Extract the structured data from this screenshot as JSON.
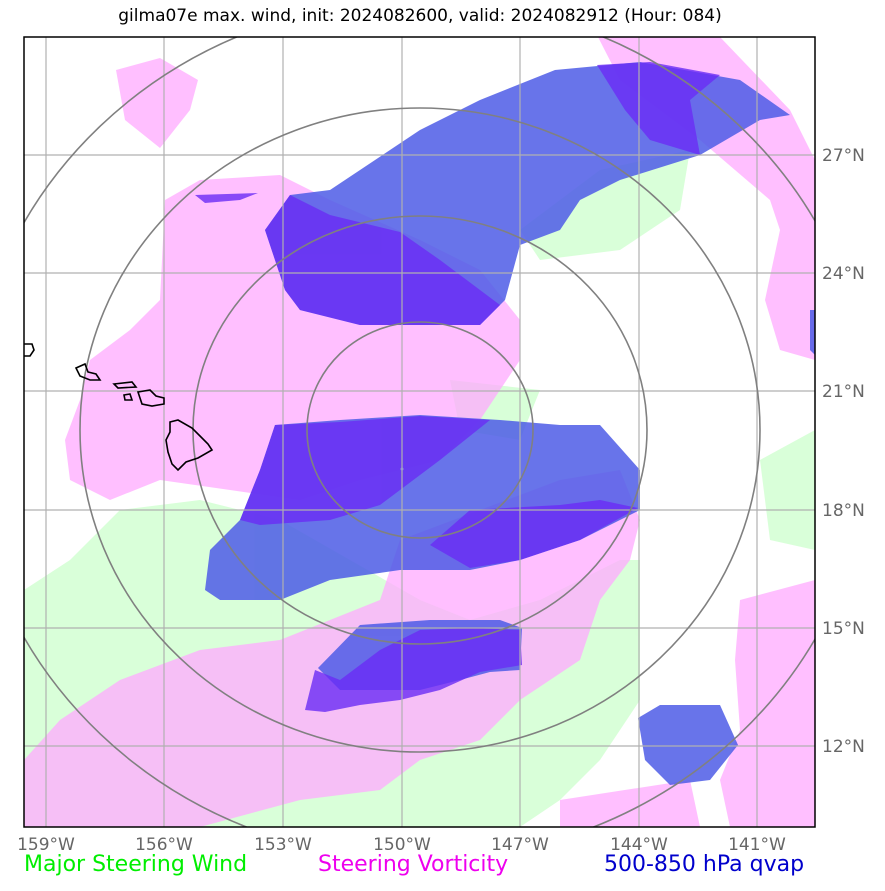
{
  "title": "gilma07e max. wind, init: 2024082600, valid: 2024082912 (Hour: 084)",
  "x_ticks": [
    "159°W",
    "156°W",
    "153°W",
    "150°W",
    "147°W",
    "144°W",
    "141°W"
  ],
  "y_ticks": [
    "27°N",
    "24°N",
    "21°N",
    "18°N",
    "15°N",
    "12°N"
  ],
  "legend": {
    "wind": "Major Steering Wind",
    "vorticity": "Steering Vorticity",
    "qvap": "500-850 hPa qvap"
  },
  "colors": {
    "wind": "#ccffcc",
    "vorticity": "#ffb3ff",
    "qvap_light": "#4d5ce6",
    "qvap_dark": "#6a2cf5",
    "grid": "#b0b0b0",
    "rings": "#808080",
    "coast": "#000000"
  },
  "chart_data": {
    "type": "map",
    "projection": "lat-lon",
    "lon_range": [
      "159.5°W",
      "139.5°W"
    ],
    "lat_range": [
      "10°N",
      "29.5°N"
    ],
    "layers": [
      "Major Steering Wind",
      "Steering Vorticity",
      "500-850 hPa qvap"
    ],
    "storm_center": "150°W, 19.5°N",
    "range_rings": 4,
    "features": [
      "Hawaiian Islands"
    ]
  }
}
